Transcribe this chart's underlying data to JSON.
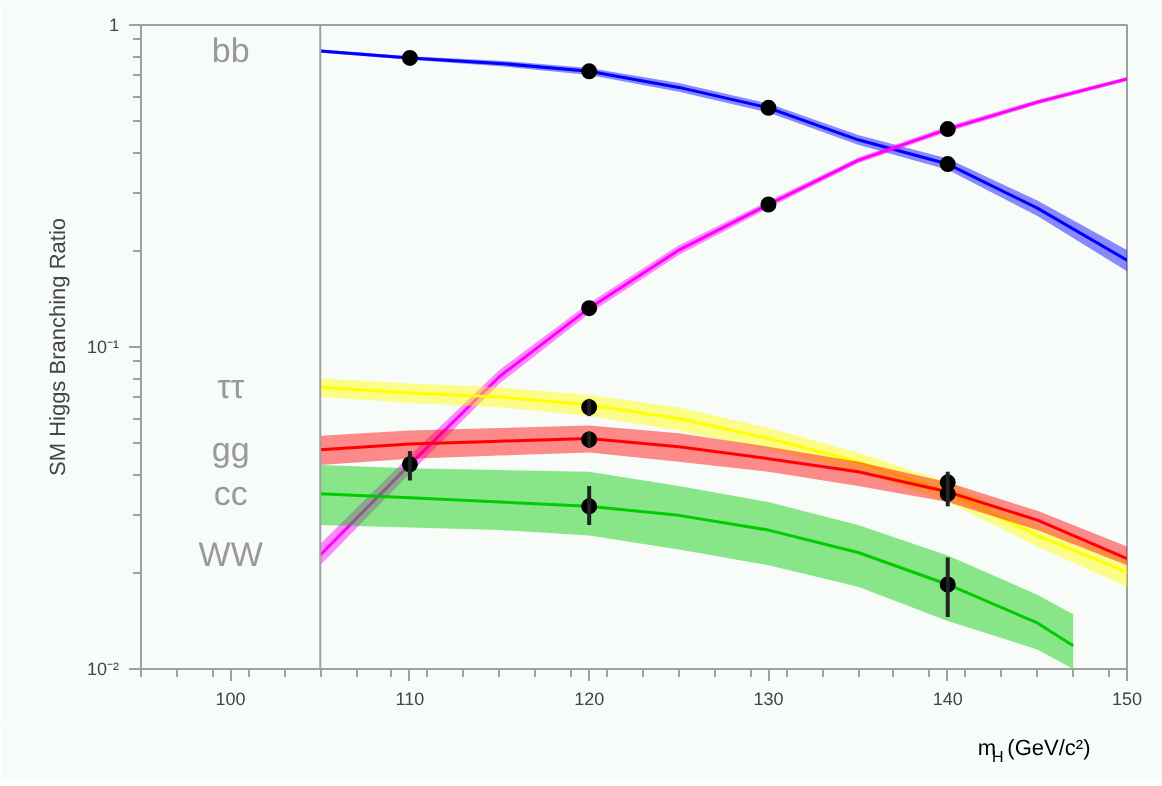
{
  "chart_data": {
    "type": "line",
    "ylabel": "SM Higgs Branching Ratio",
    "xlabel": "m$_{H}$ (GeV/c²)",
    "x": [
      105,
      110,
      115,
      120,
      125,
      130,
      135,
      140,
      145,
      150
    ],
    "xlim": [
      95,
      150
    ],
    "xticks": [
      100,
      110,
      120,
      130,
      140,
      150
    ],
    "ylim": [
      0.01,
      1
    ],
    "yticks": [
      {
        "value": 0.01,
        "label": "10⁻²"
      },
      {
        "value": 0.1,
        "label": "10⁻¹"
      },
      1
    ],
    "log": "y",
    "grid": false,
    "marker": "none",
    "line_style": "solid",
    "ref_lines": [
      {
        "axis": "x",
        "value": 105,
        "color": "#a0a0a0"
      }
    ],
    "series": [
      {
        "name": "bb",
        "color": "#0000ff",
        "values": [
          0.83,
          0.79,
          0.76,
          0.718,
          0.64,
          0.553,
          0.44,
          0.37,
          0.27,
          0.186
        ],
        "lower": [
          0.82,
          0.78,
          0.745,
          0.7,
          0.62,
          0.535,
          0.425,
          0.355,
          0.255,
          0.172
        ],
        "upper": [
          0.84,
          0.8,
          0.775,
          0.735,
          0.66,
          0.57,
          0.455,
          0.385,
          0.285,
          0.2
        ]
      },
      {
        "name": "WW",
        "color": "#ff00ff",
        "values": [
          0.0226,
          0.0432,
          0.081,
          0.132,
          0.2,
          0.277,
          0.38,
          0.475,
          0.576,
          0.68
        ],
        "lower": [
          0.021,
          0.0405,
          0.077,
          0.127,
          0.193,
          0.27,
          0.372,
          0.465,
          0.566,
          0.67
        ],
        "upper": [
          0.0245,
          0.046,
          0.085,
          0.137,
          0.207,
          0.284,
          0.388,
          0.485,
          0.586,
          0.69
        ]
      },
      {
        "name": "ττ",
        "color": "#ffff00",
        "values": [
          0.075,
          0.072,
          0.07,
          0.066,
          0.06,
          0.052,
          0.044,
          0.0355,
          0.026,
          0.02
        ],
        "lower": [
          0.07,
          0.067,
          0.065,
          0.061,
          0.055,
          0.048,
          0.041,
          0.033,
          0.024,
          0.018
        ],
        "upper": [
          0.08,
          0.077,
          0.075,
          0.071,
          0.065,
          0.056,
          0.047,
          0.038,
          0.028,
          0.022
        ]
      },
      {
        "name": "gg",
        "color": "#ff0000",
        "values": [
          0.048,
          0.05,
          0.051,
          0.052,
          0.049,
          0.045,
          0.041,
          0.0355,
          0.029,
          0.022
        ],
        "lower": [
          0.043,
          0.045,
          0.046,
          0.047,
          0.044,
          0.041,
          0.037,
          0.033,
          0.027,
          0.021
        ],
        "upper": [
          0.053,
          0.055,
          0.056,
          0.057,
          0.054,
          0.049,
          0.044,
          0.038,
          0.031,
          0.024
        ]
      },
      {
        "name": "cc",
        "color": "#00cc00",
        "x": [
          105,
          110,
          115,
          120,
          125,
          130,
          135,
          140,
          145,
          147
        ],
        "values": [
          0.035,
          0.034,
          0.033,
          0.032,
          0.03,
          0.027,
          0.023,
          0.0183,
          0.0139,
          0.0118
        ],
        "lower": [
          0.028,
          0.0275,
          0.027,
          0.026,
          0.0235,
          0.021,
          0.018,
          0.0141,
          0.0115,
          0.01
        ],
        "upper": [
          0.043,
          0.042,
          0.0415,
          0.041,
          0.037,
          0.033,
          0.028,
          0.0225,
          0.017,
          0.0148
        ]
      },
      {
        "type": "scatter",
        "marker": "circle",
        "color": "#000000",
        "x": [
          110,
          120,
          130,
          140
        ],
        "values": [
          0.79,
          0.718,
          0.553,
          0.37
        ]
      },
      {
        "type": "scatter",
        "marker": "circle",
        "color": "#000000",
        "x": [
          110,
          120,
          130,
          140
        ],
        "values": [
          0.0432,
          0.132,
          0.277,
          0.475
        ],
        "errors": [
          [
            0.0385,
            0.0475
          ],
          null,
          null,
          null
        ]
      },
      {
        "type": "scatter",
        "marker": "circle",
        "color": "#000000",
        "x": [
          120,
          140
        ],
        "values": [
          0.065,
          0.035
        ],
        "errors": [
          0.004,
          0.003
        ]
      },
      {
        "type": "scatter",
        "marker": "circle",
        "color": "#000000",
        "x": [
          120,
          140
        ],
        "values": [
          0.0516,
          0.038
        ],
        "errors": [
          0.003,
          0.003
        ]
      },
      {
        "type": "scatter",
        "marker": "circle",
        "color": "#000000",
        "x": [
          120,
          140
        ],
        "values": [
          0.032,
          0.0183
        ],
        "errors": [
          [
            0.028,
            0.037
          ],
          [
            0.0145,
            0.0222
          ]
        ]
      }
    ]
  }
}
